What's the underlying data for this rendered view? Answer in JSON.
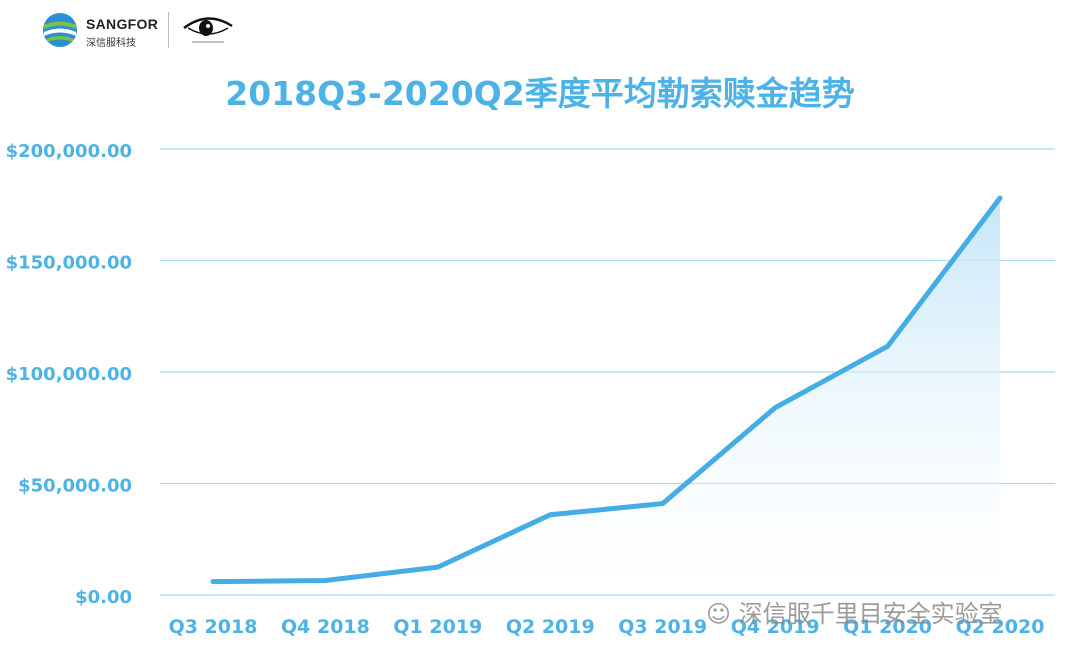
{
  "brand": {
    "name": "SANGFOR",
    "name_cn": "深信服科技"
  },
  "watermark": {
    "text": "深信服千里目安全实验室"
  },
  "colors": {
    "accent": "#4db3e6",
    "line": "#45ade3",
    "grid": "#a8d8f0",
    "area": "#cfeaf8"
  },
  "chart_data": {
    "type": "area",
    "title": "2018Q3-2020Q2季度平均勒索赎金趋势",
    "categories": [
      "Q3 2018",
      "Q4 2018",
      "Q1 2019",
      "Q2 2019",
      "Q3 2019",
      "Q4 2019",
      "Q1 2020",
      "Q2 2020"
    ],
    "values": [
      6000,
      6500,
      12500,
      36000,
      41000,
      84000,
      111500,
      178000
    ],
    "ylim": [
      0,
      200000
    ],
    "yticks": [
      0,
      50000,
      100000,
      150000,
      200000
    ],
    "ytick_labels": [
      "$0.00",
      "$50,000.00",
      "$100,000.00",
      "$150,000.00",
      "$200,000.00"
    ],
    "grid": true,
    "legend": "none"
  }
}
